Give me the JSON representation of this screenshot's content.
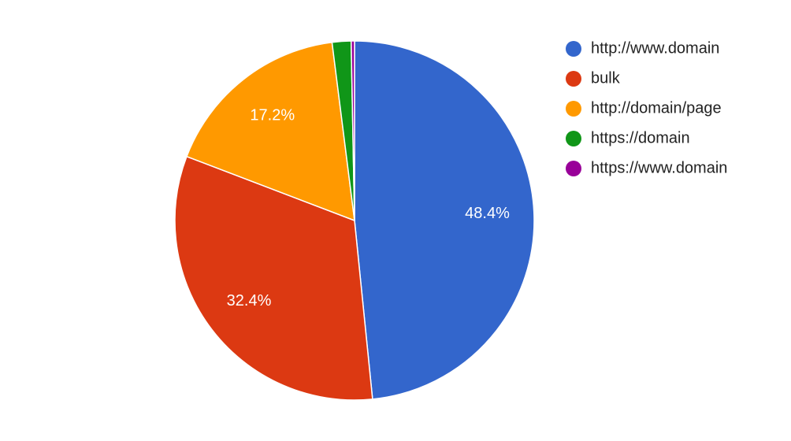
{
  "chart_data": {
    "type": "pie",
    "categories": [
      "http://www.domain",
      "bulk",
      "http://domain/page",
      "https://domain",
      "https://www.domain"
    ],
    "values": [
      48.4,
      32.4,
      17.2,
      1.7,
      0.3
    ],
    "value_labels": [
      "48.4%",
      "32.4%",
      "17.2%",
      null,
      null
    ],
    "colors": [
      "#3366cc",
      "#dc3912",
      "#ff9900",
      "#109618",
      "#990099"
    ],
    "legend": "right"
  }
}
